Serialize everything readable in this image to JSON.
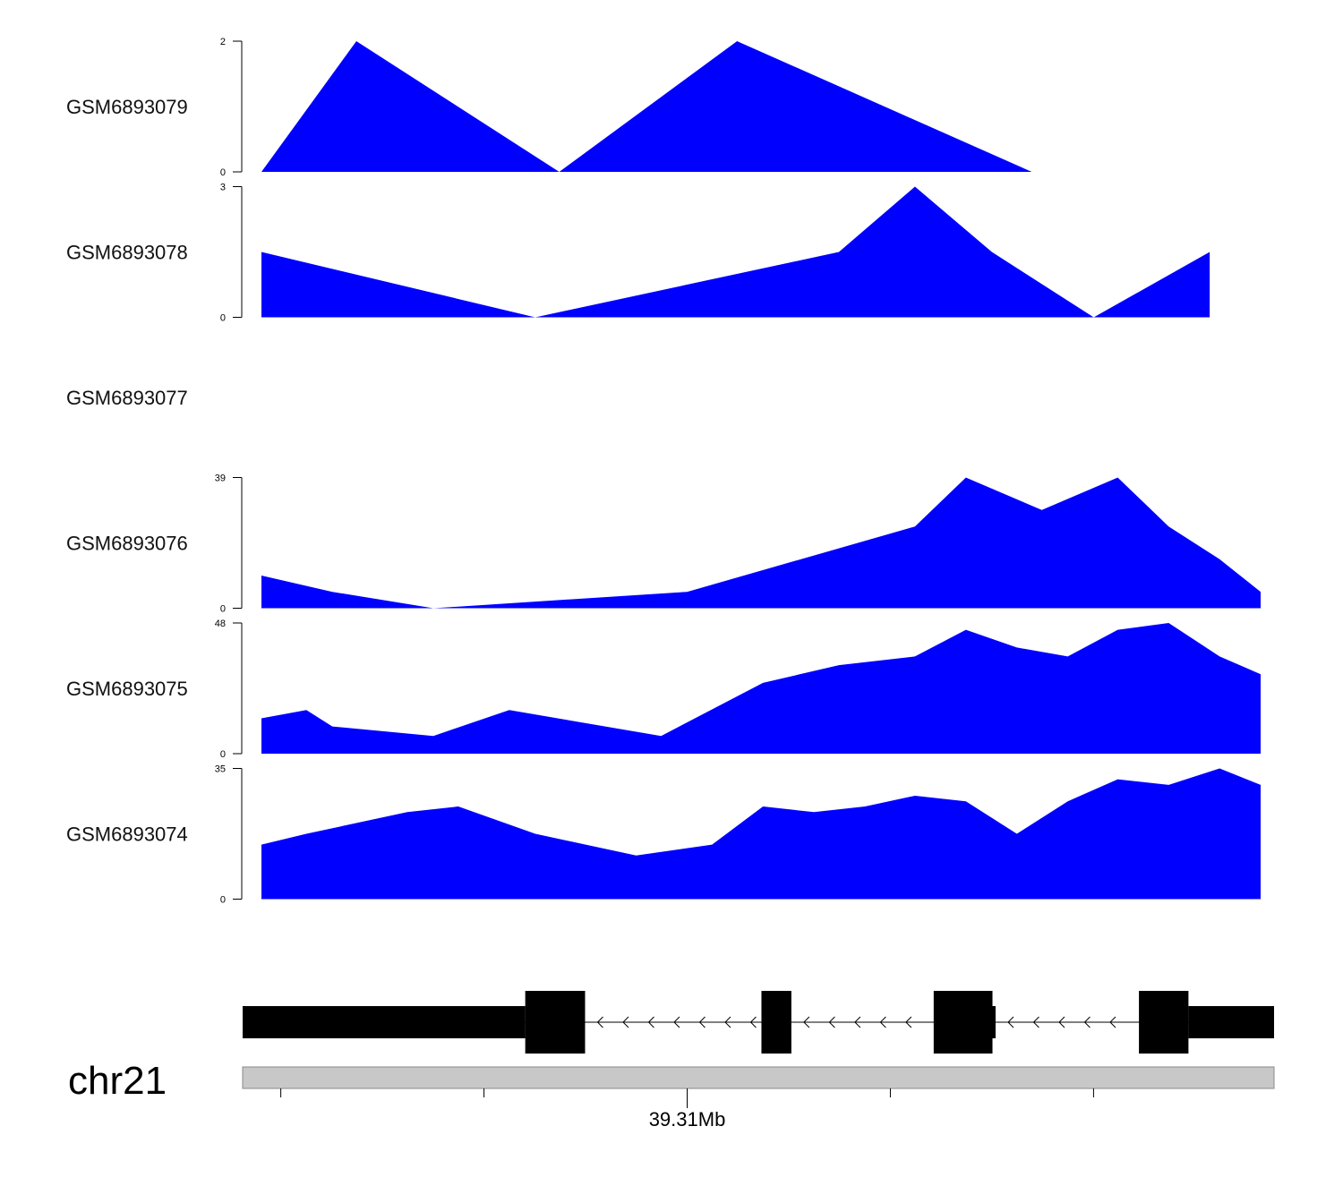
{
  "colors": {
    "fill": "#0000ff",
    "gene": "#000000",
    "ideogram": "#c8c8c8",
    "axis": "#000000"
  },
  "chart_data": {
    "type": "area",
    "tracks": [
      {
        "name": "GSM6893079",
        "ylim": [
          0,
          2
        ],
        "tick_labels": [
          "0",
          "2"
        ],
        "x": [
          0,
          0.095,
          0.298,
          0.476,
          0.771
        ],
        "values": [
          0,
          2,
          0,
          2,
          0
        ]
      },
      {
        "name": "GSM6893078",
        "ylim": [
          0,
          3
        ],
        "tick_labels": [
          "0",
          "3"
        ],
        "x": [
          0,
          0.274,
          0.578,
          0.654,
          0.731,
          0.833,
          0.949
        ],
        "values": [
          1.5,
          0,
          1.5,
          3,
          1.5,
          0,
          1.5
        ]
      },
      {
        "name": "GSM6893077",
        "ylim": null,
        "tick_labels": [],
        "x": [],
        "values": []
      },
      {
        "name": "GSM6893076",
        "ylim": [
          0,
          39
        ],
        "tick_labels": [
          "0",
          "39"
        ],
        "x": [
          0,
          0.071,
          0.172,
          0.426,
          0.654,
          0.705,
          0.781,
          0.857,
          0.908,
          0.959,
          1.0
        ],
        "values": [
          9.75,
          4.9,
          0,
          4.9,
          24.4,
          39,
          29.3,
          39,
          24.4,
          14.6,
          4.9
        ]
      },
      {
        "name": "GSM6893075",
        "ylim": [
          0,
          48
        ],
        "tick_labels": [
          "0",
          "48"
        ],
        "x": [
          0,
          0.045,
          0.071,
          0.172,
          0.248,
          0.4,
          0.502,
          0.578,
          0.654,
          0.705,
          0.756,
          0.807,
          0.857,
          0.908,
          0.959,
          1.0
        ],
        "values": [
          13,
          16,
          10,
          6.5,
          16,
          6.5,
          26,
          32.5,
          35.7,
          45.5,
          39,
          35.7,
          45.5,
          48,
          35.7,
          29.2
        ]
      },
      {
        "name": "GSM6893074",
        "ylim": [
          0,
          35
        ],
        "tick_labels": [
          "0",
          "35"
        ],
        "x": [
          0,
          0.045,
          0.146,
          0.197,
          0.274,
          0.375,
          0.451,
          0.502,
          0.553,
          0.604,
          0.654,
          0.705,
          0.756,
          0.807,
          0.857,
          0.908,
          0.959,
          1.0
        ],
        "values": [
          14.6,
          17.5,
          23.3,
          24.8,
          17.5,
          11.7,
          14.6,
          24.8,
          23.3,
          24.8,
          27.7,
          26.2,
          17.5,
          26.2,
          32.1,
          30.6,
          35,
          30.6
        ]
      }
    ],
    "gene_track": {
      "strand": "-",
      "exons": [
        {
          "start": 0.0,
          "end": 0.274,
          "thick": false
        },
        {
          "start": 0.274,
          "end": 0.332,
          "thick": true
        },
        {
          "start": 0.503,
          "end": 0.532,
          "thick": true
        },
        {
          "start": 0.67,
          "end": 0.727,
          "thick": true
        },
        {
          "start": 0.727,
          "end": 0.73,
          "thick": false
        },
        {
          "start": 0.869,
          "end": 0.917,
          "thick": true
        },
        {
          "start": 0.917,
          "end": 1.0,
          "thick": false
        }
      ]
    },
    "axis": {
      "chromosome": "chr21",
      "ticks": [
        0.037,
        0.234,
        0.431,
        0.628,
        0.825
      ],
      "labeled_tick_index": 2,
      "tick_label": "39.31Mb"
    }
  }
}
